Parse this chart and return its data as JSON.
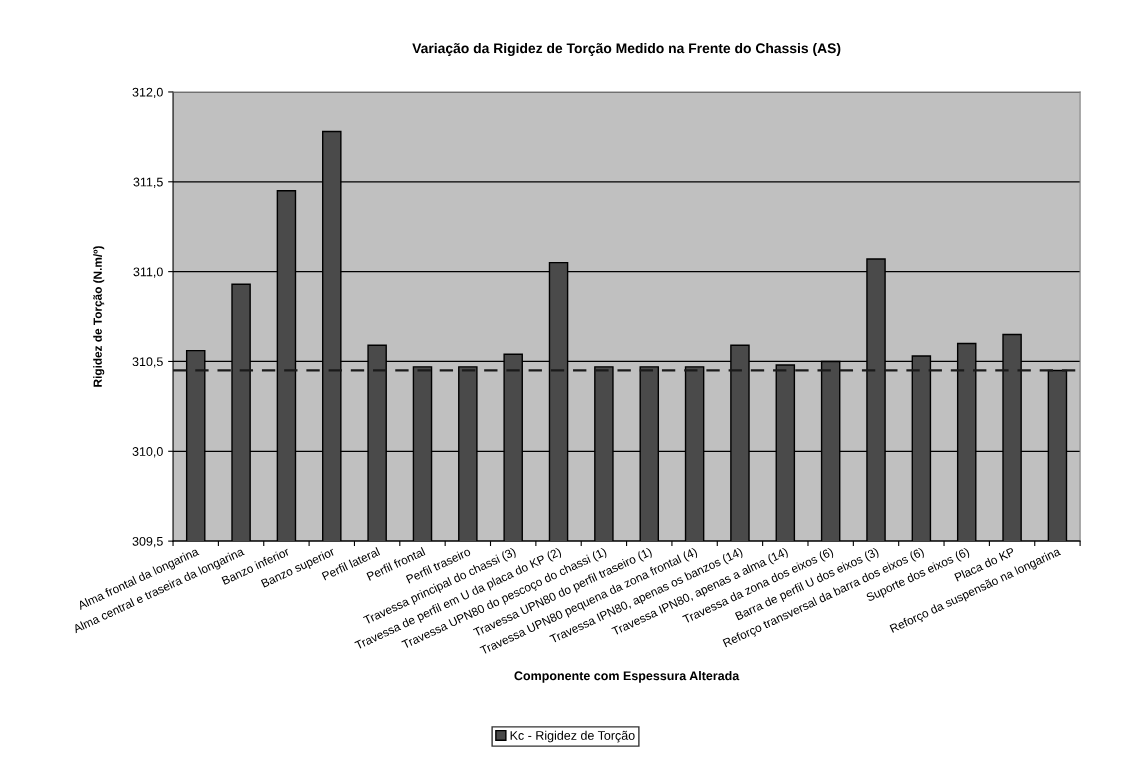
{
  "chart_data": {
    "type": "bar",
    "title": "Variação da Rigidez de Torção Medido na Frente do Chassis (AS)",
    "xlabel": "Componente com Espessura Alterada",
    "ylabel": "Rigidez de Torção (N.m/º)",
    "categories": [
      "Alma frontal da longarina",
      "Alma central e traseira da longarina",
      "Banzo inferior",
      "Banzo superior",
      "Perfil lateral",
      "Perfil frontal",
      "Perfil traseiro",
      "Travessa principal do chassi (3)",
      "Travessa de perfil em U da placa do KP (2)",
      "Travessa UPN80 do pescoço do chassi (1)",
      "Travessa UPN80 do perfil traseiro (1)",
      "Travessa UPN80 pequena da zona frontal (4)",
      "Travessa IPN80, apenas os banzos (14)",
      "Travessa IPN80, apenas a alma (14)",
      "Travessa da zona dos eixos (6)",
      "Barra de perfil U dos eixos (3)",
      "Reforço transversal da barra dos eixos (6)",
      "Suporte dos eixos (6)",
      "Placa do KP",
      "Reforço da suspensão na longarina"
    ],
    "series": [
      {
        "name": "Kc - Rigidez de Torção",
        "color": "#4a4a4a",
        "values": [
          310.56,
          310.93,
          311.45,
          311.78,
          310.59,
          310.47,
          310.47,
          310.54,
          311.05,
          310.47,
          310.47,
          310.47,
          310.59,
          310.48,
          310.5,
          311.07,
          310.53,
          310.6,
          310.65,
          310.45
        ]
      }
    ],
    "ylim": [
      309.5,
      312.0
    ],
    "yticks": [
      {
        "value": 309.5,
        "label": "309,5"
      },
      {
        "value": 310.0,
        "label": "310,0"
      },
      {
        "value": 310.5,
        "label": "310,5"
      },
      {
        "value": 311.0,
        "label": "311,0"
      },
      {
        "value": 311.5,
        "label": "311,5"
      },
      {
        "value": 312.0,
        "label": "312,0"
      }
    ],
    "ref_lines": [
      {
        "axis": "y",
        "value": 310.45,
        "color": "#1a1a1a",
        "line_style": "dashed"
      }
    ],
    "grid": "y",
    "legend": "bottom"
  }
}
